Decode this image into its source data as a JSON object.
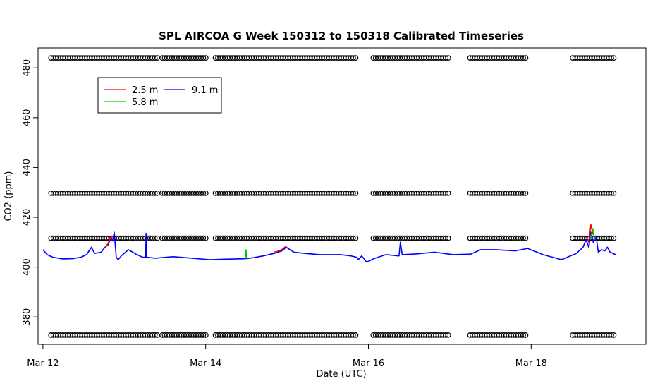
{
  "chart_data": {
    "type": "line",
    "title": "SPL AIRCOA G  Week 150312 to 150318  Calibrated Timeseries",
    "xlabel": "Date (UTC)",
    "ylabel": "CO2 (ppm)",
    "x_unit": "days",
    "xlim": [
      "2015-03-11T22:34",
      "2015-03-19T09:50"
    ],
    "ylim": [
      369,
      488
    ],
    "x_ticks": [
      {
        "x": "2015-03-12",
        "label": "Mar 12"
      },
      {
        "x": "2015-03-14",
        "label": "Mar 14"
      },
      {
        "x": "2015-03-16",
        "label": "Mar 16"
      },
      {
        "x": "2015-03-18",
        "label": "Mar 18"
      }
    ],
    "y_ticks": [
      380,
      400,
      420,
      440,
      460,
      480
    ],
    "grid": false,
    "legend": {
      "position": "top-left",
      "entries": [
        {
          "name": "2.5 m",
          "color": "#ff0000"
        },
        {
          "name": "5.8 m",
          "color": "#00cd00"
        },
        {
          "name": "9.1 m",
          "color": "#0000ff"
        }
      ]
    },
    "series": [
      {
        "name": "9.1 m",
        "color": "#0000ff",
        "points": [
          [
            "2015-03-12T00:00",
            407
          ],
          [
            "2015-03-12T01:14",
            405
          ],
          [
            "2015-03-12T02:52",
            404
          ],
          [
            "2015-03-12T05:46",
            403.3
          ],
          [
            "2015-03-12T08:43",
            403.4
          ],
          [
            "2015-03-12T11:17",
            404
          ],
          [
            "2015-03-12T12:53",
            405
          ],
          [
            "2015-03-12T14:18",
            408
          ],
          [
            "2015-03-12T15:14",
            405.5
          ],
          [
            "2015-03-12T17:12",
            406
          ],
          [
            "2015-03-12T18:19",
            408
          ],
          [
            "2015-03-12T19:14",
            409
          ],
          [
            "2015-03-12T20:06",
            412
          ],
          [
            "2015-03-12T20:34",
            410.5
          ],
          [
            "2015-03-12T21:02",
            414
          ],
          [
            "2015-03-12T21:38",
            404
          ],
          [
            "2015-03-12T22:12",
            403
          ],
          [
            "2015-03-12T23:07",
            404.5
          ],
          [
            "2015-03-13T01:14",
            407
          ],
          [
            "2015-03-13T03:43",
            405
          ],
          [
            "2015-03-13T05:22",
            404
          ],
          [
            "2015-03-13T06:18",
            404
          ],
          [
            "2015-03-13T06:26",
            413.6
          ],
          [
            "2015-03-13T06:34",
            404
          ],
          [
            "2015-03-13T09:05",
            403.6
          ],
          [
            "2015-03-13T14:29",
            404.2
          ],
          [
            "2015-03-13T20:34",
            403.5
          ],
          [
            "2015-03-14T01:14",
            403
          ],
          [
            "2015-03-14T05:58",
            403.2
          ],
          [
            "2015-03-14T11:53",
            403.4
          ],
          [
            "2015-03-14T14:06",
            403.8
          ],
          [
            "2015-03-14T17:00",
            404.5
          ],
          [
            "2015-03-14T20:10",
            405.5
          ],
          [
            "2015-03-14T22:27",
            406.5
          ],
          [
            "2015-03-14T23:46",
            408
          ],
          [
            "2015-03-15T02:00",
            406
          ],
          [
            "2015-03-15T05:22",
            405.5
          ],
          [
            "2015-03-15T09:36",
            405
          ],
          [
            "2015-03-15T15:48",
            405
          ],
          [
            "2015-03-15T18:50",
            404.5
          ],
          [
            "2015-03-15T20:26",
            404
          ],
          [
            "2015-03-15T21:02",
            403
          ],
          [
            "2015-03-15T22:01",
            404.5
          ],
          [
            "2015-03-15T23:30",
            402
          ],
          [
            "2015-03-16T01:49",
            403.5
          ],
          [
            "2015-03-16T05:10",
            405
          ],
          [
            "2015-03-16T09:01",
            404.5
          ],
          [
            "2015-03-16T09:25",
            410
          ],
          [
            "2015-03-16T09:58",
            405
          ],
          [
            "2015-03-16T14:02",
            405.3
          ],
          [
            "2015-03-16T19:26",
            406
          ],
          [
            "2015-03-17T01:01",
            405
          ],
          [
            "2015-03-17T06:10",
            405.2
          ],
          [
            "2015-03-17T09:05",
            407
          ],
          [
            "2015-03-17T13:31",
            407
          ],
          [
            "2015-03-17T19:14",
            406.5
          ],
          [
            "2015-03-17T22:56",
            407.5
          ],
          [
            "2015-03-18T03:29",
            405
          ],
          [
            "2015-03-18T08:55",
            403
          ],
          [
            "2015-03-18T13:19",
            405.5
          ],
          [
            "2015-03-18T15:17",
            408
          ],
          [
            "2015-03-18T16:10",
            411
          ],
          [
            "2015-03-18T17:00",
            408
          ],
          [
            "2015-03-18T17:37",
            414
          ],
          [
            "2015-03-18T18:19",
            410
          ],
          [
            "2015-03-18T19:10",
            412
          ],
          [
            "2015-03-18T19:48",
            406
          ],
          [
            "2015-03-18T20:46",
            407
          ],
          [
            "2015-03-18T21:42",
            406.5
          ],
          [
            "2015-03-18T22:29",
            408
          ],
          [
            "2015-03-18T23:14",
            406
          ],
          [
            "2015-03-19T00:53",
            405
          ]
        ]
      },
      {
        "name": "2.5 m",
        "color": "#ff0000",
        "points": [
          [
            "2015-03-12T18:19",
            408
          ],
          [
            "2015-03-12T19:14",
            409.5
          ],
          [
            "2015-03-12T20:06",
            412.5
          ],
          [
            "2015-03-12T20:34",
            411
          ]
        ]
      },
      {
        "name": "2.5 m",
        "color": "#ff0000",
        "points": [
          [
            "2015-03-14T20:10",
            406
          ],
          [
            "2015-03-14T21:05",
            406.3
          ],
          [
            "2015-03-14T22:27",
            407
          ],
          [
            "2015-03-14T23:46",
            408.5
          ]
        ]
      },
      {
        "name": "2.5 m",
        "color": "#ff0000",
        "points": [
          [
            "2015-03-18T16:10",
            412
          ],
          [
            "2015-03-18T17:00",
            410
          ],
          [
            "2015-03-18T17:37",
            417
          ],
          [
            "2015-03-18T18:19",
            413
          ]
        ]
      },
      {
        "name": "5.8 m",
        "color": "#00cd00",
        "points": [
          [
            "2015-03-14T11:53",
            403.4
          ],
          [
            "2015-03-14T11:53",
            407
          ],
          [
            "2015-03-14T12:08",
            403.5
          ]
        ]
      },
      {
        "name": "5.8 m",
        "color": "#00cd00",
        "points": [
          [
            "2015-03-18T17:37",
            412
          ],
          [
            "2015-03-18T18:10",
            415.5
          ],
          [
            "2015-03-18T18:43",
            411
          ]
        ]
      }
    ],
    "flag_points": {
      "marker": "o",
      "y_levels": [
        484,
        429.7,
        411.6,
        372.7
      ],
      "segments": [
        [
          "2015-03-12T02:22",
          "2015-03-13T10:26"
        ],
        [
          "2015-03-13T11:11",
          "2015-03-14T00:24"
        ],
        [
          "2015-03-14T02:53",
          "2015-03-15T20:50"
        ],
        [
          "2015-03-16T01:26",
          "2015-03-16T23:34"
        ],
        [
          "2015-03-17T05:58",
          "2015-03-17T22:56"
        ],
        [
          "2015-03-18T12:14",
          "2015-03-19T01:01"
        ]
      ]
    }
  }
}
